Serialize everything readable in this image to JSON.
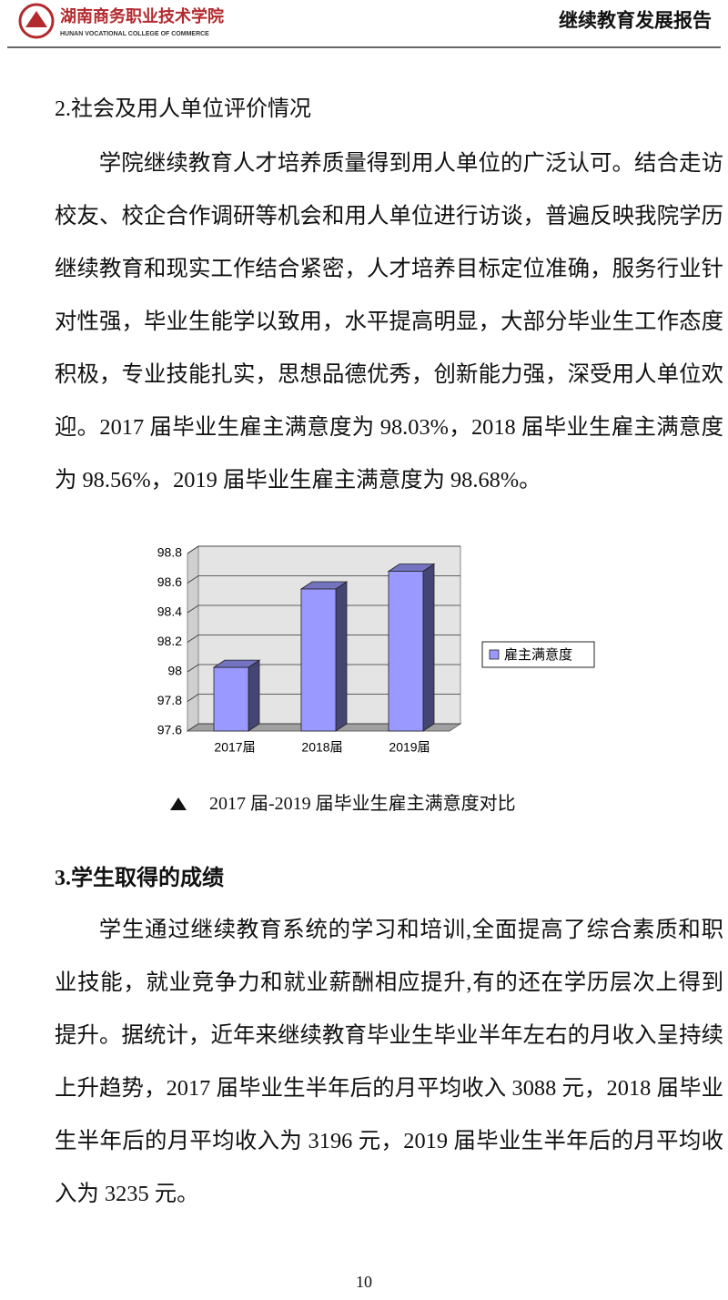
{
  "header": {
    "school_name": "湖南商务职业技术学院",
    "school_name_en": "HUNAN VOCATIONAL COLLEGE OF COMMERCE",
    "report_title": "继续教育发展报告"
  },
  "sections": [
    {
      "heading": "2.社会及用人单位评价情况",
      "paragraphs": [
        "学院继续教育人才培养质量得到用人单位的广泛认可。结合走访校友、校企合作调研等机会和用人单位进行访谈，普遍反映我院学历继续教育和现实工作结合紧密，人才培养目标定位准确，服务行业针对性强，毕业生能学以致用，水平提高明显，大部分毕业生工作态度积极，专业技能扎实，思想品德优秀，创新能力强，深受用人单位欢迎。2017 届毕业生雇主满意度为 98.03%，2018 届毕业生雇主满意度为 98.56%，2019 届毕业生雇主满意度为 98.68%。"
      ]
    },
    {
      "heading": "3.学生取得的成绩",
      "paragraphs": [
        "学生通过继续教育系统的学习和培训,全面提高了综合素质和职业技能，就业竞争力和就业薪酬相应提升,有的还在学历层次上得到提升。据统计，近年来继续教育毕业生毕业半年左右的月收入呈持续上升趋势，2017 届毕业生半年后的月平均收入 3088 元，2018 届毕业生半年后的月平均收入为 3196 元，2019 届毕业生半年后的月平均收入为 3235 元。"
      ]
    }
  ],
  "chart_data": {
    "type": "bar3d",
    "categories": [
      "2017届",
      "2018届",
      "2019届"
    ],
    "series": [
      {
        "name": "雇主满意度",
        "color": "#9999ff",
        "values": [
          98.03,
          98.56,
          98.68
        ]
      }
    ],
    "ylim": [
      97.6,
      98.8
    ],
    "yticks": [
      97.6,
      97.8,
      98,
      98.2,
      98.4,
      98.6,
      98.8
    ],
    "grid": true,
    "legend": "right"
  },
  "caption": "2017 届-2019 届毕业生雇主满意度对比",
  "page_number": "10"
}
